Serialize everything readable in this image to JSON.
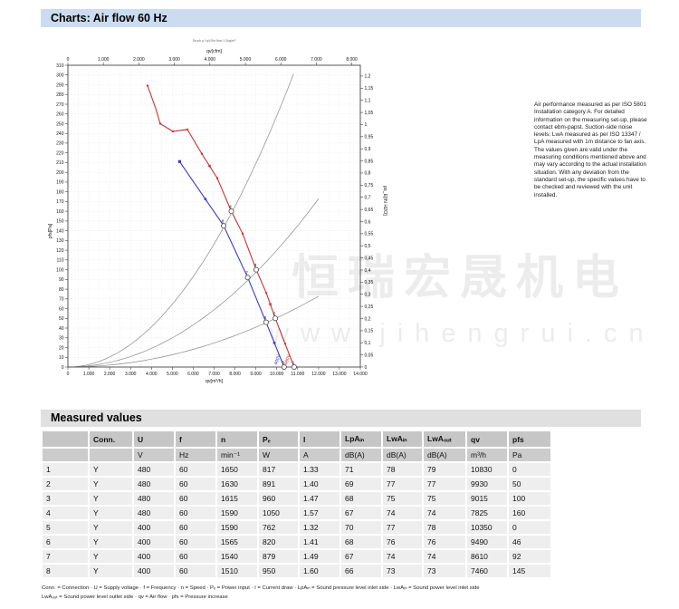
{
  "header": {
    "title": "Charts: Air flow 60 Hz"
  },
  "watermark": {
    "line1": "恒瑞宏晟机电",
    "line2": "www.jihengrui.cn"
  },
  "note": {
    "lines": [
      "Air performance measured as per ISO 5801",
      "Installation category A. For detailed",
      "information on the measuring set-up, please",
      "contact ebm-papst. Suction-side noise",
      "levels: LwA measured as per ISO 13347 /",
      "LpA measured with 1m distance to fan axis.",
      "The values given are valid under the",
      "measuring conditions mentioned above and",
      "may vary according to the actual installation",
      "situation. With any deviation from the",
      "standard set-up, the specific values have to",
      "be checked and reviewed with the unit",
      "installed."
    ]
  },
  "measured": {
    "title": "Measured values",
    "columns": [
      {
        "label": "",
        "unit": ""
      },
      {
        "label": "Conn.",
        "unit": ""
      },
      {
        "label": "U",
        "unit": "V"
      },
      {
        "label": "f",
        "unit": "Hz"
      },
      {
        "label": "n",
        "unit": "min⁻¹"
      },
      {
        "label": "Pₑ",
        "unit": "W"
      },
      {
        "label": "I",
        "unit": "A"
      },
      {
        "label": "LpAᵢₙ",
        "unit": "dB(A)"
      },
      {
        "label": "LwAᵢₙ",
        "unit": "dB(A)"
      },
      {
        "label": "LwAₒᵤₜ",
        "unit": "dB(A)"
      },
      {
        "label": "qv",
        "unit": "m³/h"
      },
      {
        "label": "pfs",
        "unit": "Pa"
      }
    ],
    "rows": [
      [
        "1",
        "Y",
        "480",
        "60",
        "1650",
        "817",
        "1.33",
        "71",
        "78",
        "79",
        "10830",
        "0"
      ],
      [
        "2",
        "Y",
        "480",
        "60",
        "1630",
        "891",
        "1.40",
        "69",
        "77",
        "77",
        "9930",
        "50"
      ],
      [
        "3",
        "Y",
        "480",
        "60",
        "1615",
        "960",
        "1.47",
        "68",
        "75",
        "75",
        "9015",
        "100"
      ],
      [
        "4",
        "Y",
        "480",
        "60",
        "1590",
        "1050",
        "1.57",
        "67",
        "74",
        "74",
        "7825",
        "160"
      ],
      [
        "5",
        "Y",
        "400",
        "60",
        "1590",
        "762",
        "1.32",
        "70",
        "77",
        "78",
        "10350",
        "0"
      ],
      [
        "6",
        "Y",
        "400",
        "60",
        "1565",
        "820",
        "1.41",
        "68",
        "76",
        "76",
        "9490",
        "46"
      ],
      [
        "7",
        "Y",
        "400",
        "60",
        "1540",
        "879",
        "1.49",
        "67",
        "74",
        "74",
        "8610",
        "92"
      ],
      [
        "8",
        "Y",
        "400",
        "60",
        "1510",
        "950",
        "1.60",
        "66",
        "73",
        "73",
        "7460",
        "145"
      ]
    ],
    "footnotes": [
      "Conn. = Connection · U = Supply voltage · f = Frequency · n = Speed · Pₑ = Power input · I = Current draw · LpAᵢₙ = Sound pressure level inlet side · LwAᵢₙ = Sound power level inlet side",
      "LwAₒᵤₜ = Sound power level outlet side · qv = Air flow · pfs = Pressure increase"
    ]
  },
  "chart_data": {
    "type": "line",
    "title_top_small": "Druck p f qV/Air flow 1.2kg/m³",
    "axes": {
      "top": {
        "label": "qv[cfm]",
        "min": 0,
        "max": 8240,
        "tick_step": 1000,
        "cfm_to_m3h": 1.699
      },
      "bottom": {
        "label": "qv[m³/h]",
        "min": 0,
        "max": 14000,
        "tick_step": 1000,
        "minor_step": 500
      },
      "left": {
        "label": "pfs[Pa]",
        "min": 0,
        "max": 310,
        "tick_step": 10
      },
      "right": {
        "label": "ps_E[IN H2O]",
        "min": 0,
        "max": 1.2,
        "tick_step": 0.05,
        "pa_per_unit": 249.089
      }
    },
    "grid": true,
    "legend_position": "none",
    "series": [
      {
        "name": "480V",
        "color": "#cc3333",
        "points": [
          [
            3814,
            289
          ],
          [
            4200,
            266
          ],
          [
            4421,
            250
          ],
          [
            5028,
            242
          ],
          [
            5721,
            244
          ],
          [
            6415,
            219
          ],
          [
            7152,
            194
          ],
          [
            7825,
            160
          ],
          [
            8366,
            137
          ],
          [
            8700,
            118
          ],
          [
            9015,
            100
          ],
          [
            9500,
            76
          ],
          [
            9930,
            50
          ],
          [
            10400,
            24
          ],
          [
            10830,
            0
          ]
        ],
        "dot_points": [
          [
            3814,
            289
          ],
          [
            4421,
            250
          ],
          [
            5028,
            242
          ],
          [
            5721,
            244
          ],
          [
            6415,
            219
          ],
          [
            7152,
            194
          ],
          [
            8366,
            137
          ],
          [
            9500,
            76
          ],
          [
            10400,
            24
          ]
        ],
        "arrows": [
          6800,
          9700
        ],
        "measured_points": {
          "1": [
            10830,
            0
          ],
          "2": [
            9930,
            50
          ],
          "3": [
            9015,
            100
          ],
          "4": [
            7825,
            160
          ]
        }
      },
      {
        "name": "400V",
        "color": "#3b3bc4",
        "points": [
          [
            5350,
            211
          ],
          [
            7460,
            145
          ],
          [
            8610,
            92
          ],
          [
            9490,
            46
          ],
          [
            10350,
            0
          ]
        ],
        "start_marker": "square",
        "arrows": [
          6600,
          9900
        ],
        "measured_points": {
          "5": [
            10350,
            0
          ],
          "6": [
            9490,
            46
          ],
          "7": [
            8610,
            92
          ],
          "8": [
            7460,
            145
          ]
        }
      }
    ],
    "system_curves": [
      {
        "k": 2.58e-06,
        "q_max": 10800
      },
      {
        "k": 1.2e-06,
        "q_max": 12150
      },
      {
        "k": 5.05e-07,
        "q_max": 12100
      }
    ]
  }
}
